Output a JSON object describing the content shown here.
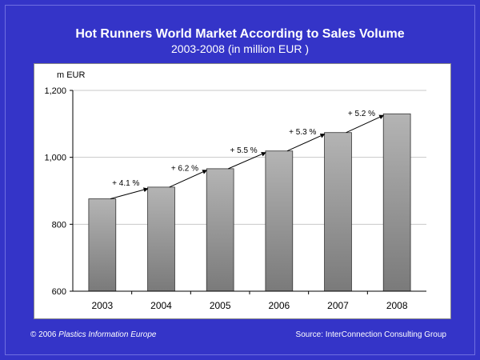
{
  "chart_data": {
    "type": "bar",
    "title": "Hot Runners World Market According to Sales Volume",
    "subtitle": "2003-2008 (in million EUR )",
    "ylabel": "m EUR",
    "categories": [
      "2003",
      "2004",
      "2005",
      "2006",
      "2007",
      "2008"
    ],
    "values": [
      876,
      911,
      966,
      1019,
      1074,
      1130
    ],
    "ylim": [
      600,
      1200
    ],
    "yticks": [
      600,
      800,
      1000,
      1200
    ],
    "ytick_labels": [
      "600",
      "800",
      "1,000",
      "1,200"
    ],
    "growth_annotations": [
      "+ 4.1 %",
      "+ 6.2 %",
      "+ 5.5 %",
      "+ 5.3 %",
      "+ 5.2 %"
    ],
    "grid": true,
    "bar_color_top": "#b4b4b4",
    "bar_color_bottom": "#7a7a7a"
  },
  "footer": {
    "copyright": "© 2006 ",
    "brand": "Plastics Information Europe",
    "source": "Source: InterConnection Consulting Group"
  }
}
